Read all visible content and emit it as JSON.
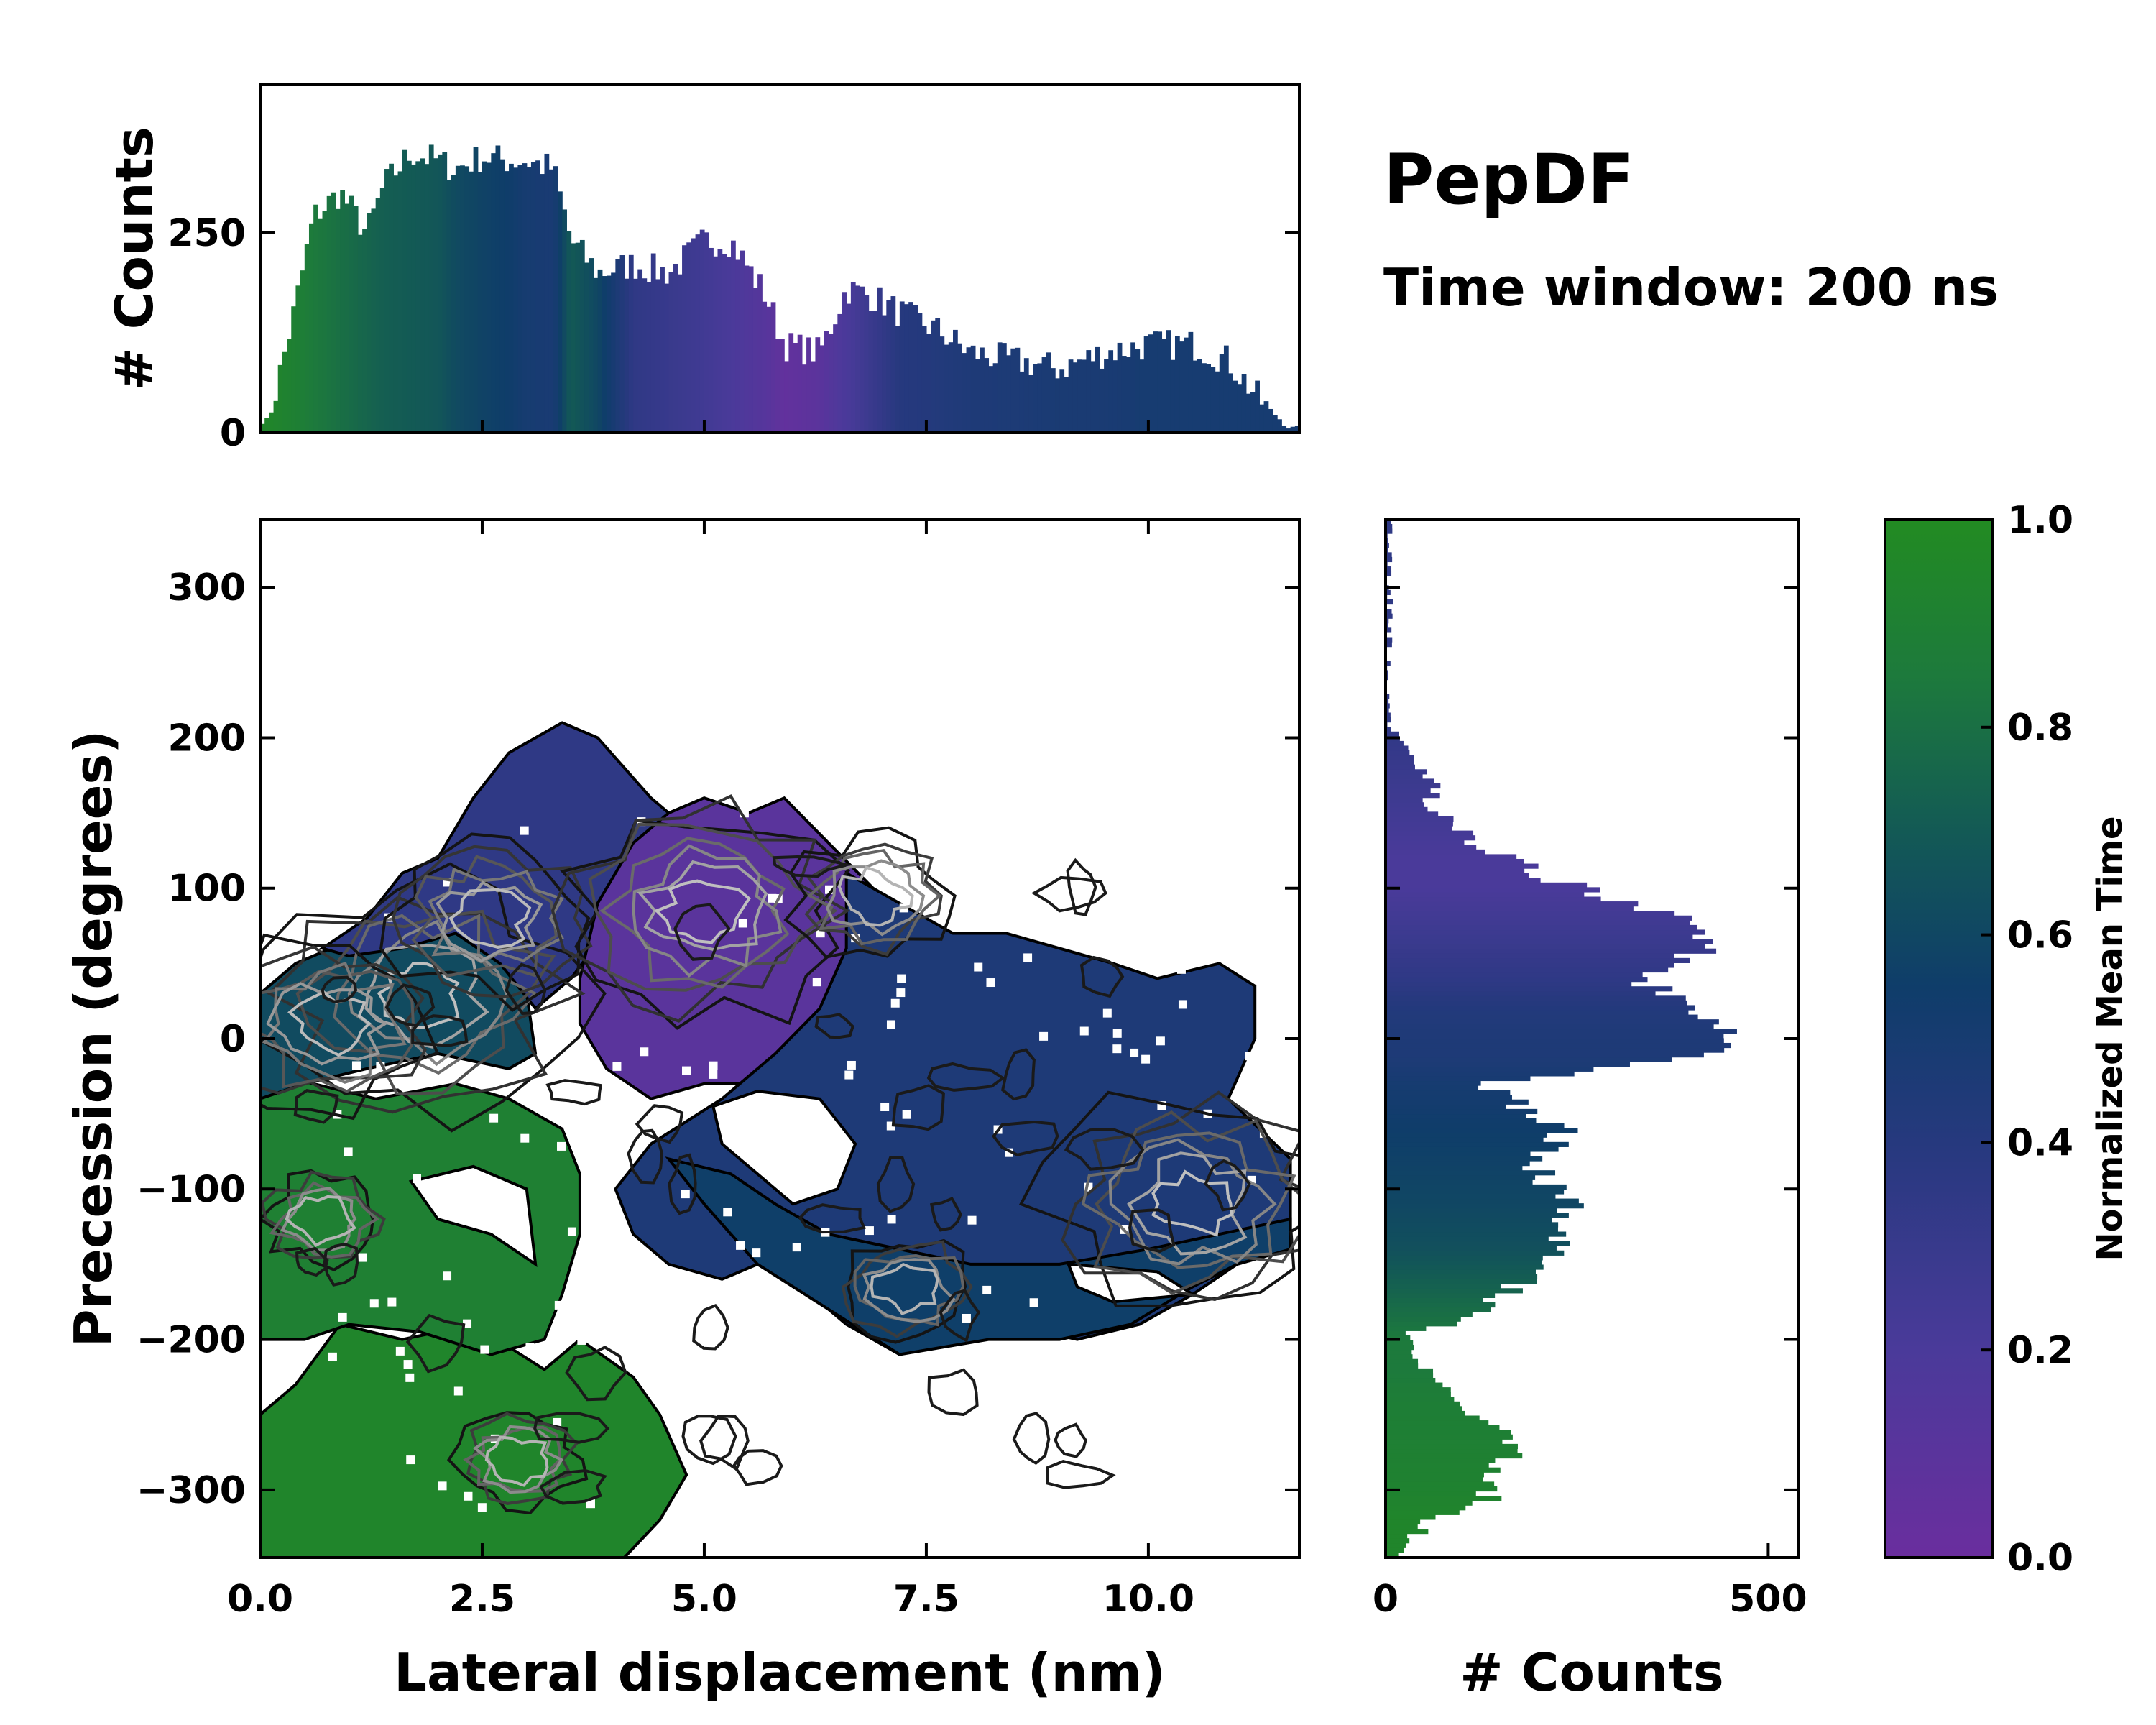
{
  "chart_data": [
    {
      "id": "top_histogram",
      "type": "bar",
      "title": "",
      "xlabel": "",
      "ylabel": "# Counts",
      "xlim": [
        0.0,
        11.7
      ],
      "ylim": [
        0,
        435
      ],
      "yticks": [
        0,
        250
      ],
      "ytick_labels": [
        "0",
        "250"
      ],
      "anchors_x": [
        0.1,
        0.4,
        0.6,
        0.9,
        1.2,
        1.4,
        1.7,
        2.0,
        2.2,
        2.5,
        2.8,
        3.0,
        3.3,
        3.5,
        3.8,
        4.2,
        4.6,
        5.0,
        5.3,
        5.7,
        5.9,
        6.3,
        6.6,
        6.9,
        7.2,
        7.6,
        8.0,
        8.5,
        9.0,
        9.5,
        10.0,
        10.5,
        10.9,
        11.3,
        11.6
      ],
      "anchors_count": [
        15,
        160,
        270,
        300,
        250,
        310,
        350,
        340,
        330,
        345,
        340,
        340,
        330,
        240,
        200,
        210,
        200,
        240,
        240,
        170,
        110,
        100,
        180,
        170,
        150,
        130,
        100,
        90,
        80,
        100,
        110,
        110,
        90,
        35,
        5
      ],
      "anchors_meantime": [
        0.95,
        0.9,
        0.85,
        0.8,
        0.75,
        0.72,
        0.7,
        0.68,
        0.62,
        0.58,
        0.55,
        0.5,
        0.48,
        0.7,
        0.6,
        0.35,
        0.3,
        0.25,
        0.2,
        0.12,
        0.05,
        0.1,
        0.2,
        0.3,
        0.4,
        0.42,
        0.45,
        0.46,
        0.48,
        0.48,
        0.5,
        0.5,
        0.5,
        0.5,
        0.5
      ]
    },
    {
      "id": "main_heatmap",
      "type": "heatmap",
      "title": "",
      "xlabel": "Lateral displacement (nm)",
      "ylabel": "Precession (degrees)",
      "xlim": [
        0.0,
        11.7
      ],
      "ylim": [
        -345,
        345
      ],
      "xticks": [
        0.0,
        2.5,
        5.0,
        7.5,
        10.0
      ],
      "xtick_labels": [
        "0.0",
        "2.5",
        "5.0",
        "7.5",
        "10.0"
      ],
      "yticks": [
        -300,
        -200,
        -100,
        0,
        100,
        200,
        300
      ],
      "ytick_labels": [
        "−300",
        "−200",
        "−100",
        "0",
        "100",
        "200",
        "300"
      ],
      "regions": [
        {
          "name": "green-lower",
          "meantime": 0.95,
          "points": [
            [
              0,
              -345
            ],
            [
              0,
              -250
            ],
            [
              0.4,
              -230
            ],
            [
              0.9,
              -190
            ],
            [
              1.6,
              -200
            ],
            [
              2.4,
              -190
            ],
            [
              3.2,
              -220
            ],
            [
              3.6,
              -200
            ],
            [
              4.2,
              -225
            ],
            [
              4.5,
              -250
            ],
            [
              4.8,
              -290
            ],
            [
              4.5,
              -320
            ],
            [
              4.1,
              -345
            ]
          ]
        },
        {
          "name": "green-middle",
          "meantime": 0.9,
          "points": [
            [
              0,
              -200
            ],
            [
              0,
              -20
            ],
            [
              0.6,
              -30
            ],
            [
              1.3,
              -40
            ],
            [
              2.2,
              -30
            ],
            [
              2.8,
              -40
            ],
            [
              3.4,
              -60
            ],
            [
              3.6,
              -90
            ],
            [
              3.6,
              -130
            ],
            [
              3.4,
              -170
            ],
            [
              3.2,
              -200
            ],
            [
              2.6,
              -210
            ],
            [
              1.8,
              -195
            ],
            [
              1.0,
              -190
            ],
            [
              0.5,
              -200
            ]
          ]
        },
        {
          "name": "teal-band",
          "meantime": 0.62,
          "points": [
            [
              0,
              -40
            ],
            [
              0,
              30
            ],
            [
              0.4,
              50
            ],
            [
              1.2,
              70
            ],
            [
              2.0,
              90
            ],
            [
              2.3,
              110
            ],
            [
              2.6,
              60
            ],
            [
              3.0,
              30
            ],
            [
              3.1,
              -10
            ],
            [
              2.8,
              -20
            ],
            [
              2.0,
              -10
            ],
            [
              1.2,
              -20
            ],
            [
              0.5,
              -30
            ]
          ]
        },
        {
          "name": "blue-left-top",
          "meantime": 0.35,
          "points": [
            [
              0.7,
              60
            ],
            [
              1.2,
              80
            ],
            [
              1.6,
              110
            ],
            [
              2.0,
              120
            ],
            [
              2.4,
              160
            ],
            [
              2.8,
              190
            ],
            [
              3.4,
              210
            ],
            [
              3.8,
              200
            ],
            [
              4.1,
              180
            ],
            [
              4.4,
              160
            ],
            [
              4.6,
              150
            ],
            [
              4.4,
              100
            ],
            [
              4.0,
              80
            ],
            [
              3.5,
              40
            ],
            [
              3.1,
              20
            ],
            [
              2.7,
              50
            ],
            [
              2.2,
              70
            ],
            [
              1.6,
              60
            ],
            [
              1.0,
              55
            ]
          ]
        },
        {
          "name": "purple-core",
          "meantime": 0.1,
          "points": [
            [
              3.6,
              40
            ],
            [
              3.8,
              90
            ],
            [
              4.2,
              130
            ],
            [
              4.6,
              150
            ],
            [
              5.0,
              160
            ],
            [
              5.5,
              150
            ],
            [
              5.9,
              160
            ],
            [
              6.4,
              130
            ],
            [
              6.9,
              100
            ],
            [
              7.3,
              80
            ],
            [
              7.0,
              40
            ],
            [
              6.6,
              20
            ],
            [
              6.0,
              -5
            ],
            [
              5.6,
              -30
            ],
            [
              5.0,
              -30
            ],
            [
              4.4,
              -40
            ],
            [
              3.9,
              -20
            ],
            [
              3.6,
              10
            ]
          ]
        },
        {
          "name": "blue-right",
          "meantime": 0.45,
          "points": [
            [
              6.6,
              110
            ],
            [
              7.2,
              90
            ],
            [
              7.8,
              70
            ],
            [
              8.4,
              70
            ],
            [
              9.0,
              60
            ],
            [
              9.6,
              50
            ],
            [
              10.1,
              40
            ],
            [
              10.8,
              50
            ],
            [
              11.2,
              35
            ],
            [
              11.2,
              0
            ],
            [
              10.9,
              -40
            ],
            [
              11.6,
              -80
            ],
            [
              11.6,
              -140
            ],
            [
              11.0,
              -150
            ],
            [
              10.5,
              -170
            ],
            [
              9.9,
              -190
            ],
            [
              9.2,
              -200
            ],
            [
              8.4,
              -190
            ],
            [
              7.8,
              -200
            ],
            [
              7.2,
              -210
            ],
            [
              6.6,
              -190
            ],
            [
              6.2,
              -170
            ],
            [
              5.6,
              -150
            ],
            [
              5.2,
              -160
            ],
            [
              4.6,
              -150
            ],
            [
              4.2,
              -130
            ],
            [
              4.0,
              -100
            ],
            [
              4.4,
              -70
            ],
            [
              5.2,
              -40
            ],
            [
              5.8,
              -10
            ],
            [
              6.3,
              20
            ],
            [
              6.6,
              60
            ]
          ]
        },
        {
          "name": "teal-right-lower",
          "meantime": 0.56,
          "points": [
            [
              4.6,
              -80
            ],
            [
              5.0,
              -110
            ],
            [
              5.6,
              -150
            ],
            [
              6.4,
              -180
            ],
            [
              7.2,
              -210
            ],
            [
              8.2,
              -200
            ],
            [
              9.0,
              -200
            ],
            [
              9.8,
              -190
            ],
            [
              10.5,
              -165
            ],
            [
              11.0,
              -150
            ],
            [
              11.6,
              -140
            ],
            [
              11.6,
              -120
            ],
            [
              10.8,
              -130
            ],
            [
              10.0,
              -140
            ],
            [
              9.0,
              -150
            ],
            [
              8.0,
              -150
            ],
            [
              7.2,
              -140
            ],
            [
              6.4,
              -130
            ],
            [
              5.8,
              -110
            ],
            [
              5.3,
              -90
            ]
          ]
        }
      ],
      "holes": [
        {
          "name": "hole-center",
          "points": [
            [
              5.1,
              -45
            ],
            [
              5.6,
              -35
            ],
            [
              6.3,
              -40
            ],
            [
              6.7,
              -70
            ],
            [
              6.5,
              -100
            ],
            [
              6.0,
              -110
            ],
            [
              5.6,
              -90
            ],
            [
              5.2,
              -70
            ]
          ]
        },
        {
          "name": "hole-left",
          "points": [
            [
              1.7,
              -95
            ],
            [
              2.4,
              -85
            ],
            [
              3.0,
              -100
            ],
            [
              3.1,
              -150
            ],
            [
              2.6,
              -130
            ],
            [
              2.0,
              -120
            ]
          ]
        },
        {
          "name": "hole-right",
          "points": [
            [
              9.1,
              -150
            ],
            [
              10.1,
              -155
            ],
            [
              10.5,
              -170
            ],
            [
              9.6,
              -175
            ],
            [
              9.2,
              -165
            ]
          ]
        }
      ],
      "peaks": [
        {
          "x": 1.8,
          "y": 30,
          "strength": 1.0
        },
        {
          "x": 0.8,
          "y": 10,
          "strength": 0.8
        },
        {
          "x": 2.6,
          "y": 80,
          "strength": 0.7
        },
        {
          "x": 5.0,
          "y": 85,
          "strength": 0.9
        },
        {
          "x": 6.9,
          "y": 95,
          "strength": 0.6
        },
        {
          "x": 10.5,
          "y": -110,
          "strength": 0.9
        },
        {
          "x": 7.3,
          "y": -165,
          "strength": 0.5
        },
        {
          "x": 0.7,
          "y": -120,
          "strength": 0.4
        },
        {
          "x": 2.9,
          "y": -280,
          "strength": 0.4
        }
      ]
    },
    {
      "id": "right_histogram",
      "type": "bar",
      "orientation": "horizontal",
      "xlabel": "# Counts",
      "ylabel": "",
      "xlim": [
        0,
        540
      ],
      "ylim": [
        -345,
        345
      ],
      "xticks": [
        0,
        500
      ],
      "xtick_labels": [
        "0",
        "500"
      ],
      "anchors_y": [
        -340,
        -320,
        -300,
        -270,
        -240,
        -220,
        -200,
        -170,
        -140,
        -110,
        -90,
        -60,
        -30,
        -10,
        0,
        20,
        40,
        60,
        80,
        100,
        120,
        150,
        180,
        210
      ],
      "anchors_count": [
        20,
        70,
        150,
        160,
        90,
        40,
        30,
        160,
        220,
        240,
        200,
        230,
        130,
        420,
        470,
        400,
        330,
        420,
        380,
        250,
        150,
        80,
        40,
        5
      ],
      "anchors_meantime": [
        0.95,
        0.95,
        0.92,
        0.9,
        0.88,
        0.85,
        0.85,
        0.75,
        0.65,
        0.6,
        0.58,
        0.55,
        0.5,
        0.45,
        0.45,
        0.42,
        0.35,
        0.3,
        0.25,
        0.2,
        0.2,
        0.25,
        0.3,
        0.35
      ]
    },
    {
      "id": "colorbar",
      "type": "colorbar",
      "label": "Normalized Mean Time",
      "range": [
        0.0,
        1.0
      ],
      "ticks": [
        0.0,
        0.2,
        0.4,
        0.6,
        0.8,
        1.0
      ],
      "tick_labels": [
        "0.0",
        "0.2",
        "0.4",
        "0.6",
        "0.8",
        "1.0"
      ],
      "stops": [
        [
          "#6a2e9e",
          0.0
        ],
        [
          "#4a3a9a",
          0.2
        ],
        [
          "#26397e",
          0.4
        ],
        [
          "#0f3d6a",
          0.55
        ],
        [
          "#135a55",
          0.7
        ],
        [
          "#1d7a3c",
          0.85
        ],
        [
          "#228b22",
          1.0
        ]
      ]
    }
  ],
  "titles": {
    "main": "PepDF",
    "subtitle": "Time window: 200 ns"
  }
}
